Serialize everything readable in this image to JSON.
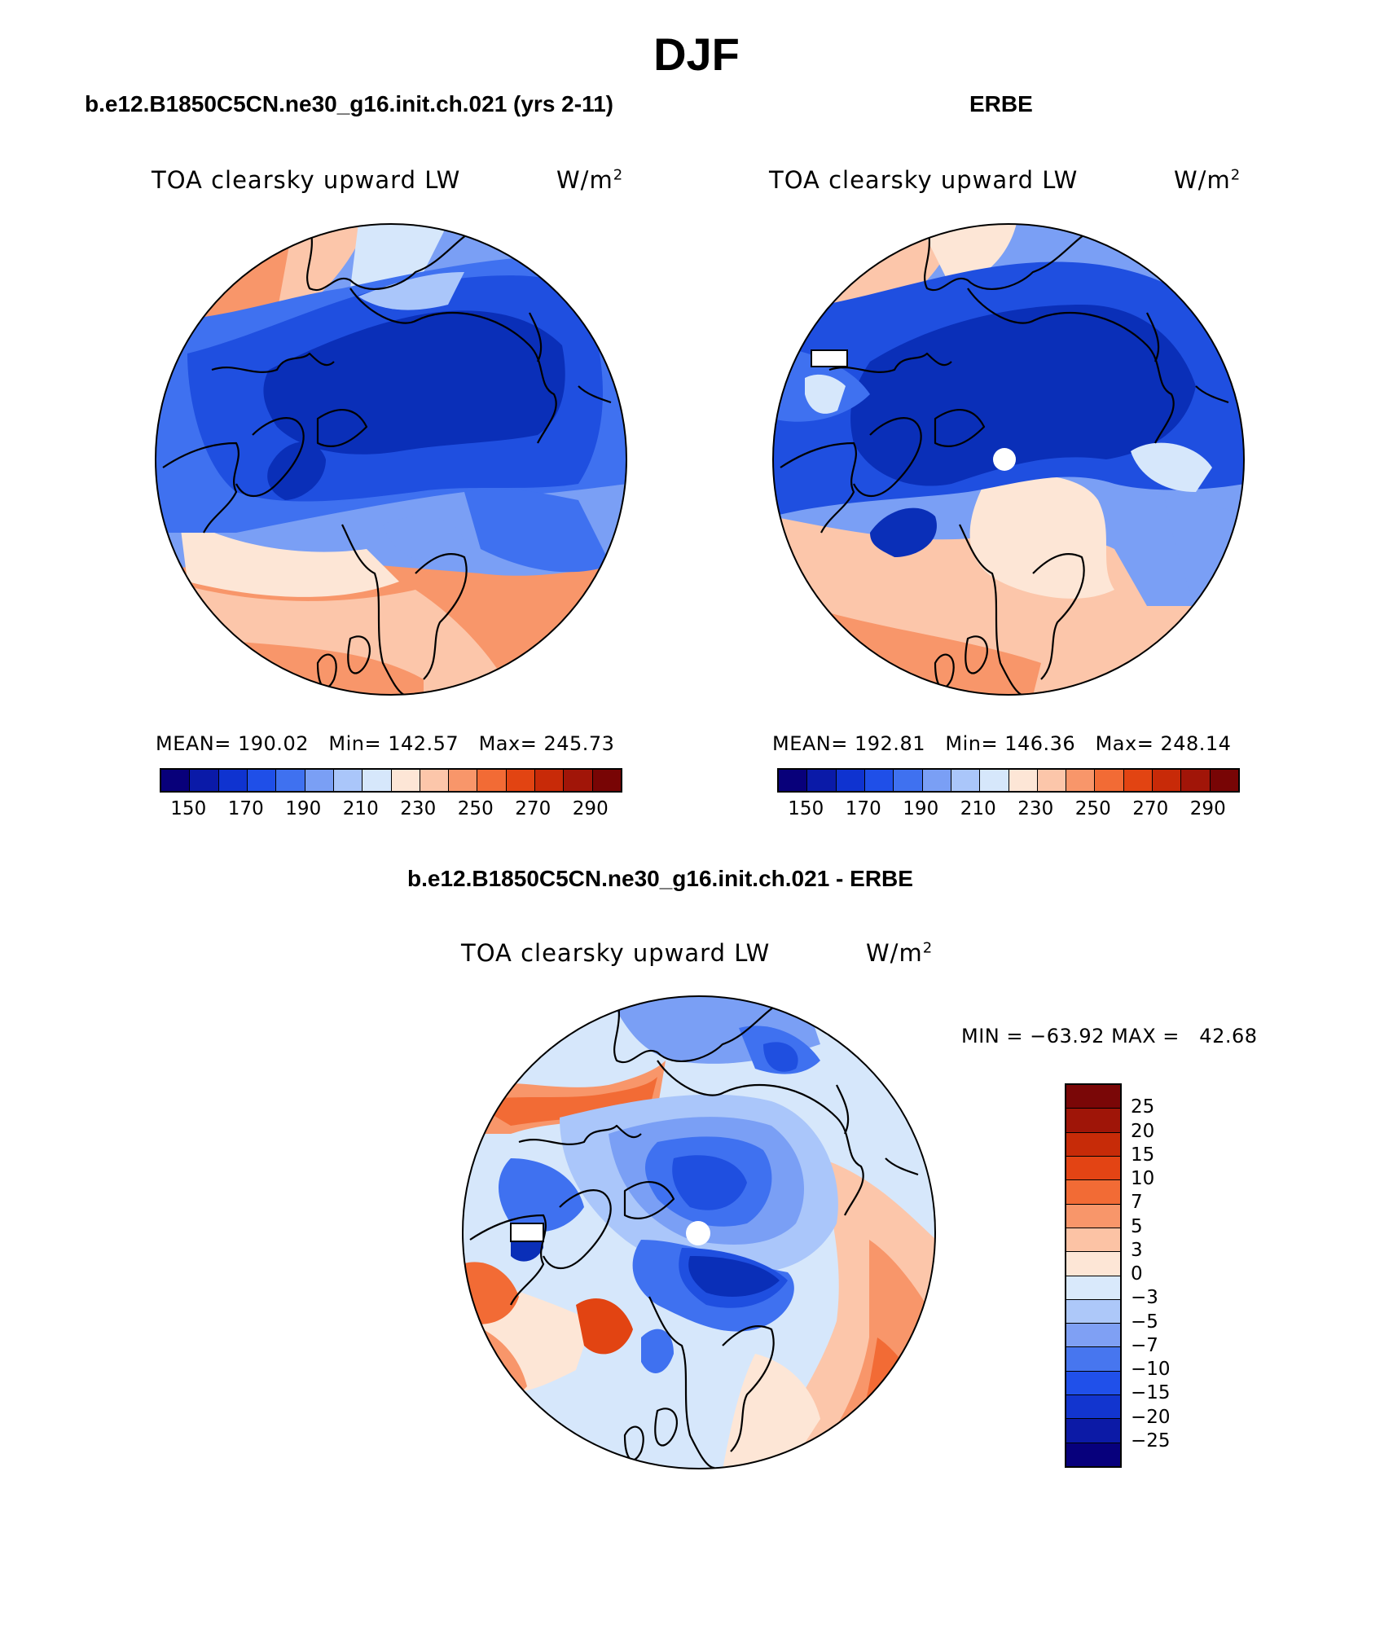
{
  "title": "DJF",
  "panels": {
    "model": {
      "case_title": "b.e12.B1850C5CN.ne30_g16.init.ch.021 (yrs 2-11)",
      "variable": "TOA clearsky upward LW",
      "units": "W/m",
      "units_exp": "2",
      "mean_label": "MEAN=",
      "mean": "190.02",
      "min_label": "Min=",
      "min": "142.57",
      "max_label": "Max=",
      "max": "245.73"
    },
    "obs": {
      "case_title": "ERBE",
      "variable": "TOA clearsky upward LW",
      "units": "W/m",
      "units_exp": "2",
      "mean_label": "MEAN=",
      "mean": "192.81",
      "min_label": "Min=",
      "min": "146.36",
      "max_label": "Max=",
      "max": "248.14"
    },
    "diff": {
      "case_title": "b.e12.B1850C5CN.ne30_g16.init.ch.021 - ERBE",
      "variable": "TOA clearsky upward LW",
      "units": "W/m",
      "units_exp": "2",
      "min_label": "MIN =",
      "min": "−63.92",
      "max_label": "MAX =",
      "max": "42.68"
    }
  },
  "colorbars": {
    "absolute": {
      "colors": [
        "#08007a",
        "#0a1aa8",
        "#0f33d0",
        "#1f4fe8",
        "#3f71f0",
        "#7a9ff5",
        "#aac6fa",
        "#d6e7fb",
        "#fde6d6",
        "#fcc6aa",
        "#f8966a",
        "#f26b35",
        "#e24412",
        "#c82a08",
        "#a11508",
        "#780505"
      ],
      "tick_labels": [
        "150",
        "170",
        "190",
        "210",
        "230",
        "250",
        "270",
        "290"
      ]
    },
    "difference": {
      "colors": [
        "#07007c",
        "#0c1aa6",
        "#1235cf",
        "#2050ea",
        "#4776ef",
        "#7fa0f4",
        "#adc8f9",
        "#d9e9fb",
        "#fde6d6",
        "#fcc3a5",
        "#f8966a",
        "#f26b35",
        "#e34414",
        "#c72b08",
        "#9f1508",
        "#7a0707"
      ],
      "tick_labels": [
        "−25",
        "−20",
        "−15",
        "−10",
        "−7",
        "−5",
        "−3",
        "0",
        "3",
        "5",
        "7",
        "10",
        "15",
        "20",
        "25"
      ]
    }
  },
  "map_colors": {
    "deep": "#0a2fb8",
    "blue": "#1f4fe0",
    "mid": "#3f71f0",
    "light": "#7a9ff5",
    "pale": "#aac6fa",
    "faint": "#d6e7fb",
    "cream": "#fde6d6",
    "peach": "#fcc6aa",
    "salmon": "#f8966a",
    "orange": "#f26b35",
    "red": "#e24412",
    "coast": "#000000",
    "missing": "#ffffff"
  }
}
